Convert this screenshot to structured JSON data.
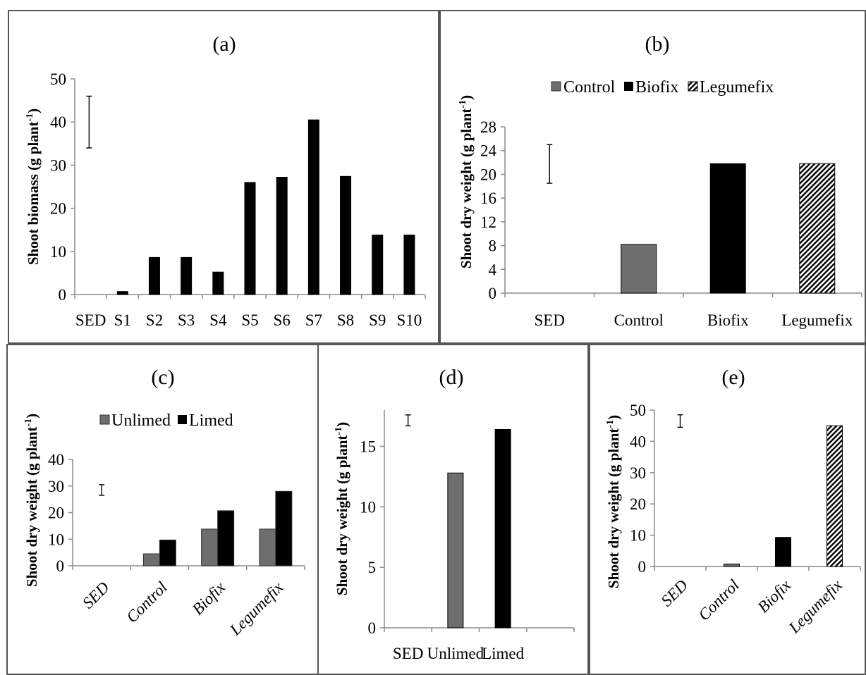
{
  "colors": {
    "control": "#6e6e6e",
    "black": "#000000",
    "axis": "#8c8c8c",
    "panel_border": "#555555"
  },
  "chart_data": [
    {
      "panel": "(a)",
      "type": "bar",
      "ylabel": "Shoot biomass (g plant",
      "ylabel_sup": "-1",
      "ylabel_close": ")",
      "ylim": [
        0,
        50
      ],
      "yticks": [
        "0",
        "10",
        "20",
        "30",
        "40",
        "50"
      ],
      "categories": [
        "SED",
        "S1",
        "S2",
        "S3",
        "S4",
        "S5",
        "S6",
        "S7",
        "S8",
        "S9",
        "S10"
      ],
      "values": [
        null,
        0.7,
        8.6,
        8.6,
        5.2,
        26,
        27.2,
        40.5,
        27.4,
        13.8,
        13.8
      ],
      "sed": {
        "low": 34,
        "high": 46
      },
      "grid": false,
      "legend": null
    },
    {
      "panel": "(b)",
      "type": "bar",
      "ylabel": "Shoot dry weight (g plant",
      "ylabel_sup": "-1",
      "ylabel_close": ")",
      "ylim": [
        0,
        28
      ],
      "yticks": [
        "0",
        "4",
        "8",
        "12",
        "16",
        "20",
        "24",
        "28"
      ],
      "categories": [
        "SED",
        "Control",
        "Biofix",
        "Legumefix"
      ],
      "values": [
        null,
        8.2,
        21.8,
        21.8
      ],
      "bar_styles": [
        null,
        "control",
        "black",
        "hatch"
      ],
      "sed": {
        "low": 18.5,
        "high": 25
      },
      "legend": [
        "Control",
        "Biofix",
        "Legumefix"
      ],
      "grid": false
    },
    {
      "panel": "(c)",
      "type": "bar",
      "ylabel": "Shoot dry weight (g plant",
      "ylabel_sup": "-1",
      "ylabel_close": ")",
      "ylim": [
        0,
        40
      ],
      "yticks": [
        "0",
        "10",
        "20",
        "30",
        "40"
      ],
      "categories": [
        "SED",
        "Control",
        "Biofix",
        "Legumefix"
      ],
      "series": [
        {
          "name": "Unlimed",
          "values": [
            null,
            4.5,
            13.8,
            13.8
          ]
        },
        {
          "name": "Limed",
          "values": [
            null,
            9.7,
            20.7,
            28
          ]
        }
      ],
      "sed": {
        "low": 26.5,
        "high": 30.5
      },
      "legend": [
        "Unlimed",
        "Limed"
      ],
      "grid": false
    },
    {
      "panel": "(d)",
      "type": "bar",
      "ylabel": "Shoot dry weight (g plant",
      "ylabel_sup": "-1",
      "ylabel_close": ")",
      "ylim": [
        0,
        18
      ],
      "yticks": [
        "0",
        "5",
        "10",
        "15"
      ],
      "categories": [
        "SED",
        "Unlimed",
        "Limed",
        ""
      ],
      "values": [
        null,
        12.8,
        16.4,
        null
      ],
      "bar_styles": [
        null,
        "control",
        "black",
        null
      ],
      "sed": {
        "low": 16.7,
        "high": 17.6
      },
      "grid": false,
      "legend": null
    },
    {
      "panel": "(e)",
      "type": "bar",
      "ylabel": "Shoot dry weight (g plant",
      "ylabel_sup": "-1",
      "ylabel_close": ")",
      "ylim": [
        0,
        50
      ],
      "yticks": [
        "0",
        "10",
        "20",
        "30",
        "40",
        "50"
      ],
      "categories": [
        "SED",
        "Control",
        "Biofix",
        "Legumefix"
      ],
      "values": [
        null,
        0.8,
        9.3,
        45
      ],
      "bar_styles": [
        null,
        "control",
        "black",
        "hatch"
      ],
      "sed": {
        "low": 44.5,
        "high": 48.5
      },
      "grid": false,
      "legend": null
    }
  ]
}
